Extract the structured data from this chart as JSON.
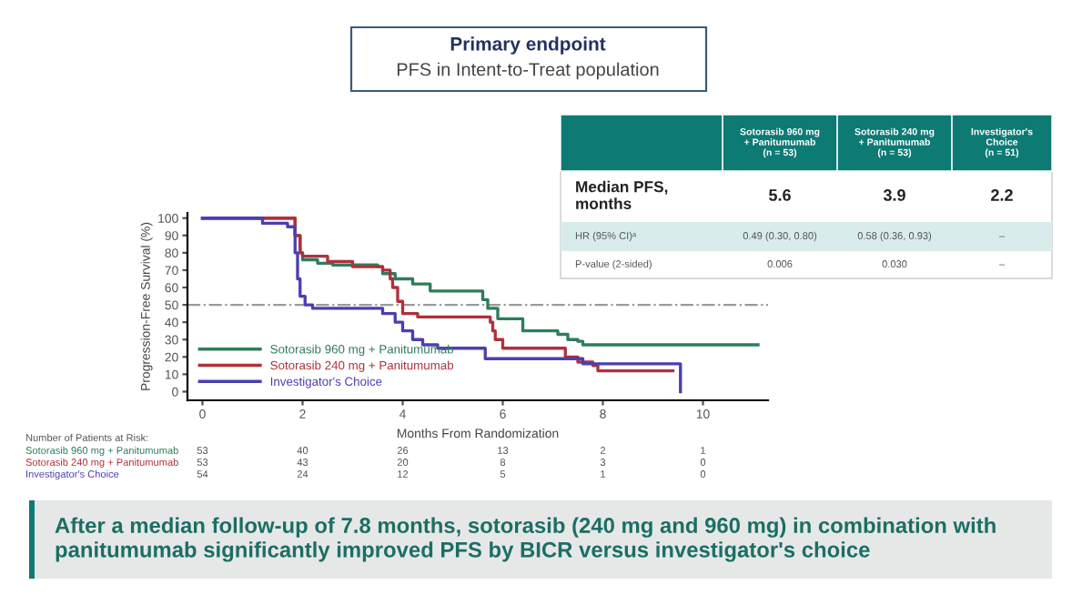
{
  "chart_data": {
    "type": "step",
    "title": "Primary endpoint",
    "subtitle": "PFS in Intent-to-Treat population",
    "xlabel": "Months From Randomization",
    "ylabel": "Progression-Free Survival (%)",
    "xlim": [
      -0.3,
      11.3
    ],
    "xticks": [
      0,
      2,
      4,
      6,
      8,
      10
    ],
    "ylim": [
      -5,
      103
    ],
    "yticks": [
      0,
      10,
      20,
      30,
      40,
      50,
      60,
      70,
      80,
      90,
      100
    ],
    "grid": false,
    "legend": "bottom left",
    "marker": "none",
    "line_style": "solid",
    "ref_lines": [
      {
        "axis": "y",
        "value": 50,
        "label": null,
        "color": "#9a9a9a",
        "line_style": "dashdot"
      }
    ],
    "series": [
      {
        "name": "Sotorasib 960 mg + Panitumumab",
        "color": "#2e7d5b",
        "x": [
          0,
          1.85,
          1.95,
          2.0,
          2.3,
          2.6,
          3.5,
          3.6,
          3.85,
          4.2,
          4.55,
          5.6,
          5.7,
          5.9,
          6.4,
          7.1,
          7.3,
          7.5,
          7.6,
          11.1
        ],
        "values": [
          100,
          90,
          80,
          76,
          74,
          73,
          72,
          68,
          65,
          62,
          58,
          53,
          48,
          42,
          35,
          33,
          30,
          29,
          27,
          27
        ]
      },
      {
        "name": "Sotorasib 240 mg + Panitumumab",
        "color": "#b0303a",
        "x": [
          0,
          1.85,
          1.95,
          2.0,
          2.5,
          3.0,
          3.6,
          3.75,
          3.8,
          3.9,
          4.0,
          4.3,
          5.7,
          5.75,
          5.8,
          5.85,
          6.0,
          7.2,
          7.25,
          7.5,
          7.8,
          7.9,
          9.4
        ],
        "values": [
          100,
          90,
          80,
          78,
          75,
          72,
          70,
          65,
          60,
          52,
          45,
          43,
          43,
          40,
          35,
          30,
          25,
          25,
          20,
          17,
          15,
          12,
          12
        ]
      },
      {
        "name": "Investigator's Choice",
        "color": "#4b3fb0",
        "x": [
          0,
          1.2,
          1.7,
          1.85,
          1.9,
          1.95,
          2.05,
          2.2,
          2.4,
          3.6,
          3.85,
          4.0,
          4.2,
          4.4,
          4.7,
          5.65,
          7.6,
          9.55,
          9.55
        ],
        "values": [
          100,
          97,
          95,
          80,
          65,
          55,
          50,
          48,
          48,
          45,
          40,
          35,
          30,
          27,
          25,
          19,
          16,
          16,
          0
        ]
      }
    ],
    "annotations": [
      "Sotorasib 960 mg\n+ Panitumumab\n(n = 53)",
      "Sotorasib 240 mg\n+ Panitumumab\n(n = 53)",
      "Investigator's\nChoice\n(n = 51)",
      "Median PFS,\nmonths",
      "5.6",
      "3.9",
      "2.2",
      "HR (95% CI)ᵃ",
      "0.49 (0.30, 0.80)",
      "0.58 (0.36, 0.93)",
      "–",
      "P-value (2-sided)",
      "0.006",
      "0.030",
      "–",
      "Number of Patients at Risk:",
      "Sotorasib 960 mg + Panitumumab",
      "53",
      "40",
      "26",
      "13",
      "2",
      "1",
      "Sotorasib 240 mg + Panitumumab",
      "53",
      "43",
      "20",
      "8",
      "3",
      "0",
      "Investigator's Choice",
      "54",
      "24",
      "12",
      "5",
      "1",
      "0",
      "After a median follow-up of 7.8 months, sotorasib (240 mg and 960 mg) in combination with panitumumab significantly improved PFS by BICR versus investigator's choice"
    ]
  }
}
